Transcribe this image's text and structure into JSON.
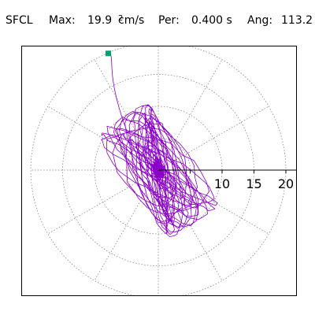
{
  "header": {
    "station": "SFCL",
    "max_label": "Max:",
    "max_value": "19.9",
    "max_unit": "cm/s",
    "max_unit_exp": "2",
    "per_label": "Per:",
    "per_value": "0.400 s",
    "ang_label": "Ang:",
    "ang_value": "113.2"
  },
  "colors": {
    "trace": "#8a00c8",
    "grid": "#777777",
    "axis": "#000000",
    "max_marker": "#00a070"
  },
  "chart_data": {
    "type": "scatter",
    "radial_ticks": [
      5,
      10,
      15,
      20
    ],
    "radial_tick_labels": [
      "10",
      "15",
      "20"
    ],
    "max_amplitude": 19.9,
    "max_angle_deg": 113.2
  }
}
